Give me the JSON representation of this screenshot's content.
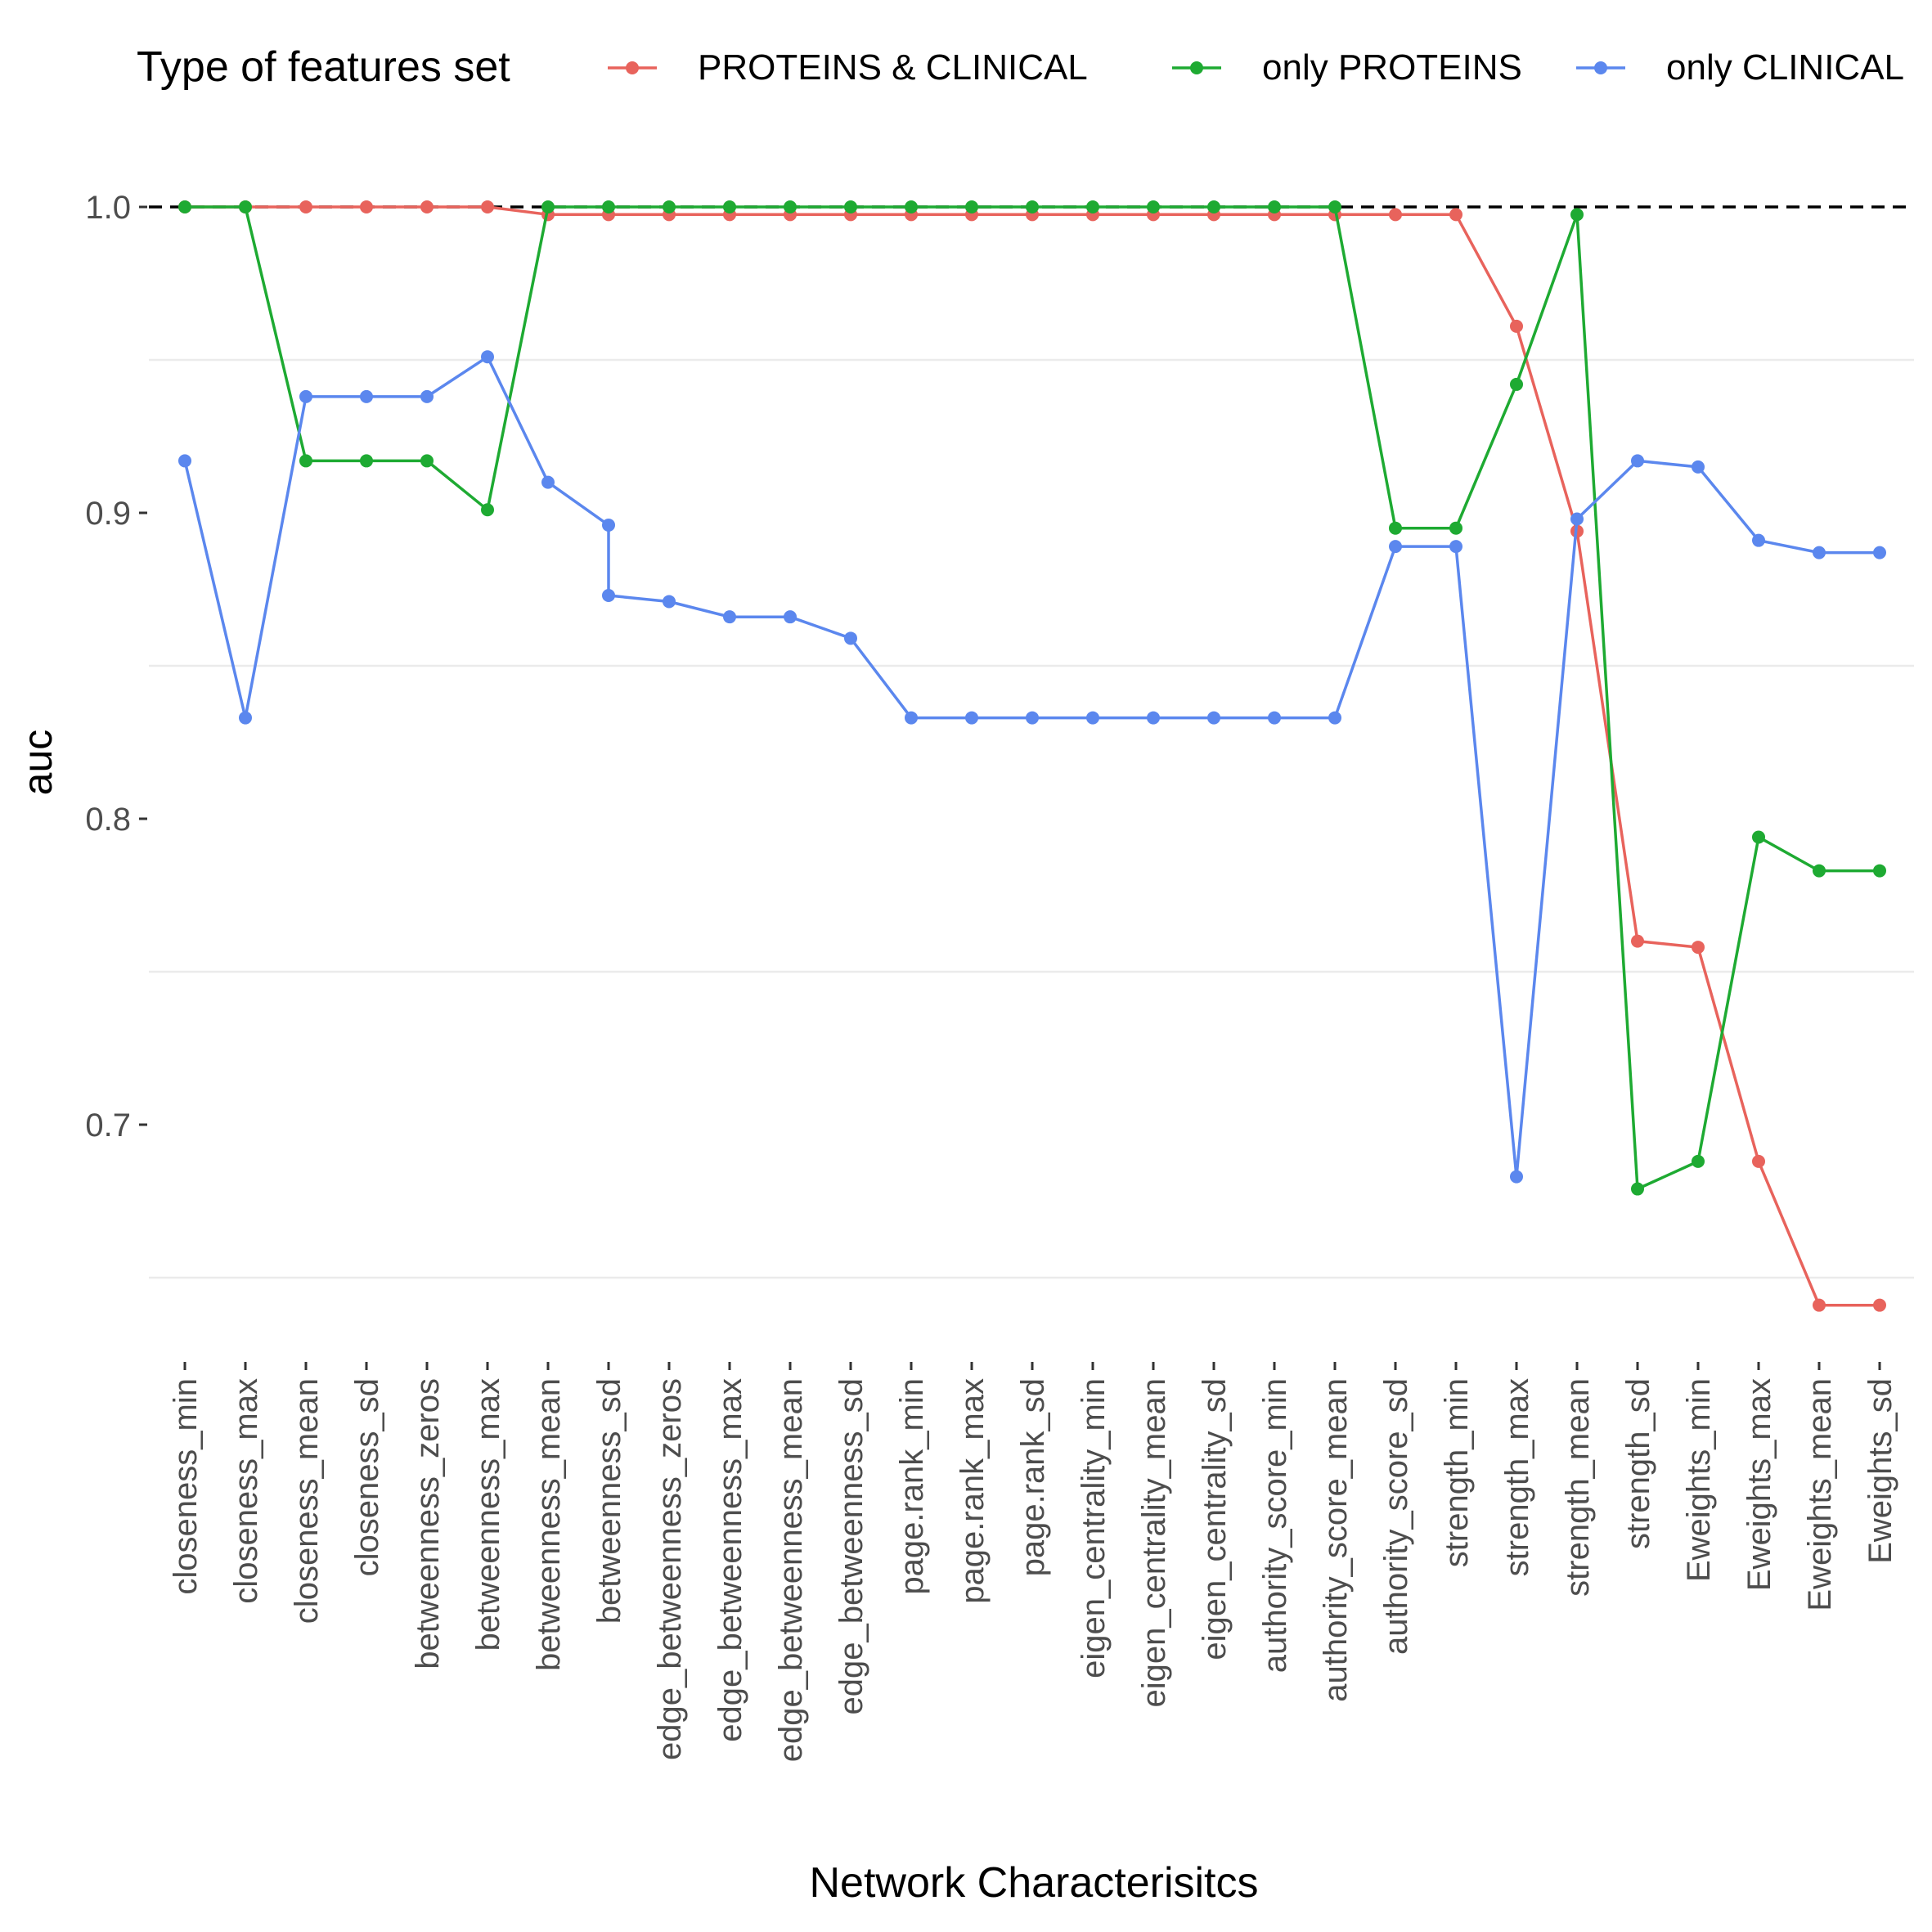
{
  "chart_data": {
    "type": "line",
    "xlabel": "Network Characterisitcs",
    "ylabel": "auc",
    "legend": {
      "title": "Type of features set",
      "position": "top"
    },
    "ylim": [
      0.65,
      1.01
    ],
    "yticks": [
      "0.7",
      "0.8",
      "0.9",
      "1.0"
    ],
    "reference_line": {
      "y": 1.0,
      "style": "dashed",
      "color": "#000000"
    },
    "grid": true,
    "categories": [
      "closeness_min",
      "closeness_max",
      "closeness_mean",
      "closeness_sd",
      "betweenness_zeros",
      "betweenness_max",
      "betweenness_mean",
      "betweenness_sd",
      "edge_betweenness_zeros",
      "edge_betweenness_max",
      "edge_betweenness_mean",
      "edge_betweenness_sd",
      "page.rank_min",
      "page.rank_max",
      "page.rank_sd",
      "eigen_centrality_min",
      "eigen_centrality_mean",
      "eigen_centrality_sd",
      "authority_score_min",
      "authority_score_mean",
      "authority_score_sd",
      "strength_min",
      "strength_max",
      "strength_mean",
      "strength_sd",
      "Eweights_min",
      "Eweights_max",
      "Eweights_mean",
      "Eweights_sd"
    ],
    "series": [
      {
        "name": "PROTEINS & CLINICAL",
        "color": "#E8635C",
        "points": [
          [
            0,
            1.0
          ],
          [
            1,
            1.0
          ],
          [
            2,
            1.0
          ],
          [
            3,
            1.0
          ],
          [
            4,
            1.0
          ],
          [
            5,
            1.0
          ],
          [
            6,
            0.9975
          ],
          [
            7,
            0.9975
          ],
          [
            8,
            0.9975
          ],
          [
            9,
            0.9975
          ],
          [
            10,
            0.9975
          ],
          [
            11,
            0.9975
          ],
          [
            12,
            0.9975
          ],
          [
            13,
            0.9975
          ],
          [
            14,
            0.9975
          ],
          [
            15,
            0.9975
          ],
          [
            16,
            0.9975
          ],
          [
            17,
            0.9975
          ],
          [
            18,
            0.9975
          ],
          [
            19,
            0.9975
          ],
          [
            20,
            0.9975
          ],
          [
            21,
            0.9975
          ],
          [
            22,
            0.961
          ],
          [
            23,
            0.894
          ],
          [
            24,
            0.76
          ],
          [
            25,
            0.758
          ],
          [
            26,
            0.688
          ],
          [
            27,
            0.641
          ],
          [
            28,
            0.641
          ]
        ]
      },
      {
        "name": "only PROTEINS",
        "color": "#1EAA32",
        "points": [
          [
            0,
            1.0
          ],
          [
            1,
            1.0
          ],
          [
            2,
            0.917
          ],
          [
            3,
            0.917
          ],
          [
            4,
            0.917
          ],
          [
            5,
            0.901
          ],
          [
            6,
            1.0
          ],
          [
            7,
            1.0
          ],
          [
            8,
            1.0
          ],
          [
            9,
            1.0
          ],
          [
            10,
            1.0
          ],
          [
            11,
            1.0
          ],
          [
            12,
            1.0
          ],
          [
            13,
            1.0
          ],
          [
            14,
            1.0
          ],
          [
            15,
            1.0
          ],
          [
            16,
            1.0
          ],
          [
            17,
            1.0
          ],
          [
            18,
            1.0
          ],
          [
            19,
            1.0
          ],
          [
            20,
            0.895
          ],
          [
            21,
            0.895
          ],
          [
            22,
            0.942
          ],
          [
            23,
            0.9975
          ],
          [
            24,
            0.679
          ],
          [
            25,
            0.688
          ],
          [
            26,
            0.794
          ],
          [
            27,
            0.783
          ],
          [
            28,
            0.783
          ]
        ]
      },
      {
        "name": "only CLINICAL",
        "color": "#5B87EE",
        "points": [
          [
            0,
            0.917
          ],
          [
            1,
            0.833
          ],
          [
            2,
            0.938
          ],
          [
            3,
            0.938
          ],
          [
            4,
            0.938
          ],
          [
            5,
            0.951
          ],
          [
            6,
            0.91
          ],
          [
            7,
            0.896
          ],
          [
            7,
            0.873
          ],
          [
            8,
            0.871
          ],
          [
            9,
            0.866
          ],
          [
            10,
            0.866
          ],
          [
            11,
            0.859
          ],
          [
            12,
            0.833
          ],
          [
            13,
            0.833
          ],
          [
            14,
            0.833
          ],
          [
            15,
            0.833
          ],
          [
            16,
            0.833
          ],
          [
            17,
            0.833
          ],
          [
            18,
            0.833
          ],
          [
            19,
            0.833
          ],
          [
            20,
            0.889
          ],
          [
            21,
            0.889
          ],
          [
            22,
            0.683
          ],
          [
            23,
            0.898
          ],
          [
            24,
            0.917
          ],
          [
            25,
            0.915
          ],
          [
            26,
            0.891
          ],
          [
            27,
            0.887
          ],
          [
            28,
            0.887
          ]
        ]
      }
    ]
  }
}
